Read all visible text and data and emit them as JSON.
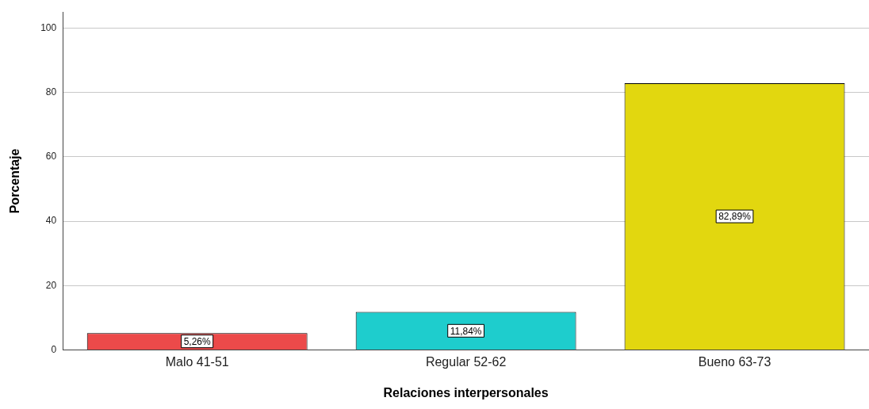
{
  "chart_data": {
    "type": "bar",
    "xlabel": "Relaciones interpersonales",
    "ylabel": "Porcentaje",
    "categories": [
      "Malo 41-51",
      "Regular 52-62",
      "Bueno 63-73"
    ],
    "values": [
      5.26,
      11.84,
      82.89
    ],
    "colors": [
      "#ec4a4a",
      "#1ecdcd",
      "#e2d70f"
    ],
    "value_labels": [
      "5,26%",
      "11,84%",
      "82,89%"
    ],
    "ylim": [
      0,
      105
    ],
    "yticks": [
      0,
      20,
      40,
      60,
      80,
      100
    ],
    "grid": "y"
  }
}
